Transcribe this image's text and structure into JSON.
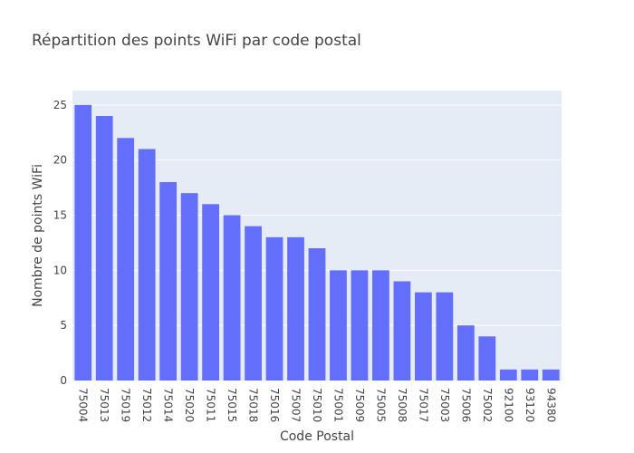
{
  "chart_data": {
    "type": "bar",
    "title": "Répartition des points WiFi par code postal",
    "xlabel": "Code Postal",
    "ylabel": "Nombre de points WiFi",
    "categories": [
      "75004",
      "75013",
      "75019",
      "75012",
      "75014",
      "75020",
      "75011",
      "75015",
      "75018",
      "75016",
      "75007",
      "75010",
      "75001",
      "75009",
      "75005",
      "75008",
      "75017",
      "75003",
      "75006",
      "75002",
      "92100",
      "93120",
      "94380"
    ],
    "values": [
      25,
      24,
      22,
      21,
      18,
      17,
      16,
      15,
      14,
      13,
      13,
      12,
      10,
      10,
      10,
      9,
      8,
      8,
      5,
      4,
      1,
      1,
      1
    ],
    "ylim": [
      0,
      26.3
    ],
    "yticks": [
      0,
      5,
      10,
      15,
      20,
      25
    ],
    "grid": true,
    "legend": "none",
    "colors": {
      "bar": "#636efa",
      "plot_bg": "#e5ecf6",
      "grid": "#ffffff",
      "text": "#444444"
    }
  }
}
